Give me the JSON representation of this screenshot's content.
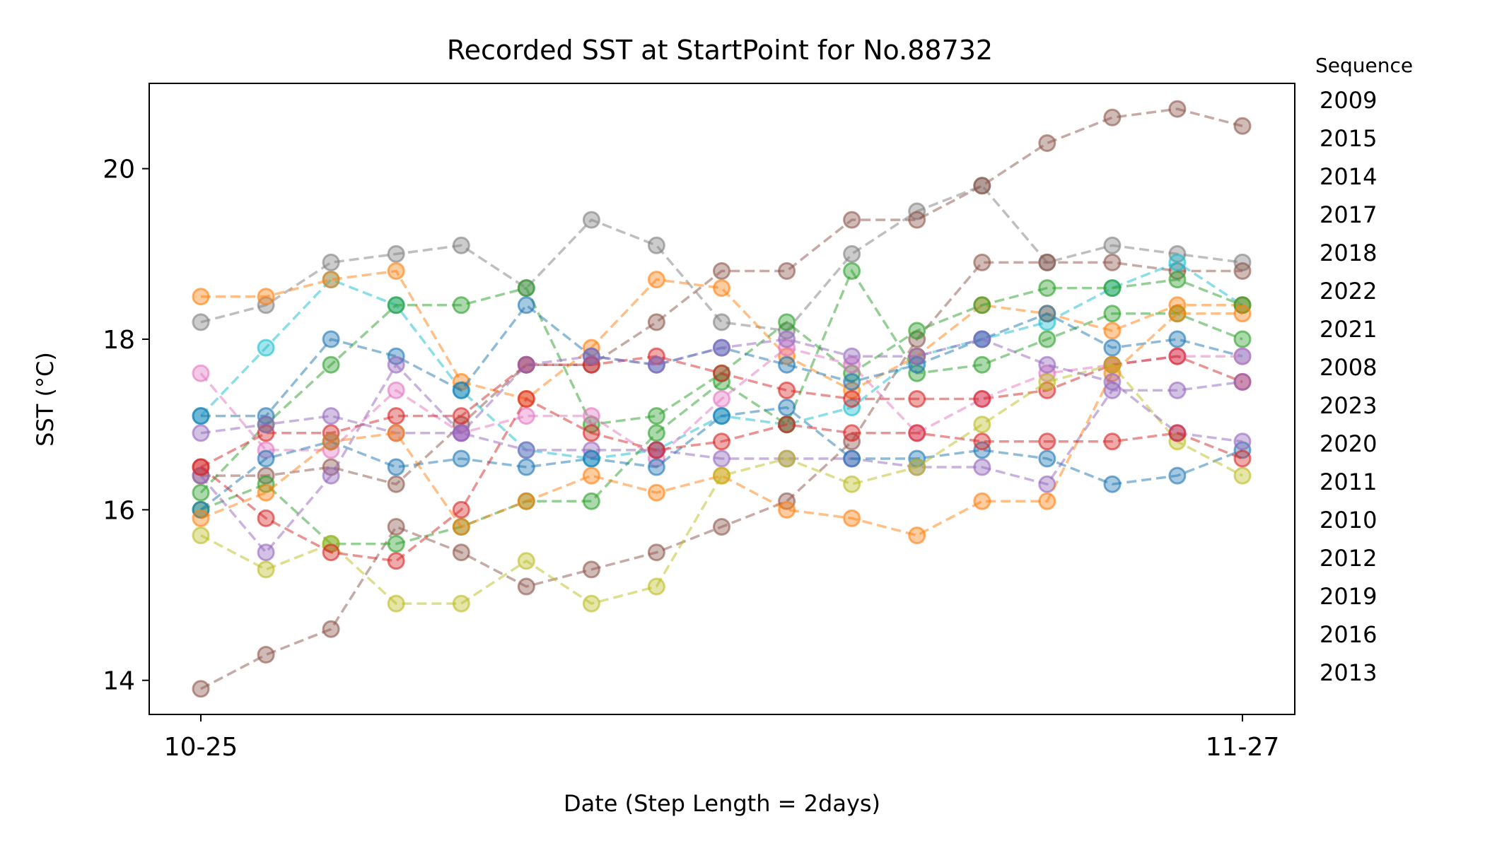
{
  "chart_data": {
    "type": "line",
    "title": "Recorded SST at StartPoint for No.88732",
    "xlabel": "Date (Step Length = 2days)",
    "ylabel": "SST (°C)",
    "x_tick_labels": [
      "10-25",
      "11-27"
    ],
    "y_ticks": [
      14,
      16,
      18,
      20
    ],
    "ylim": [
      13.6,
      21.0
    ],
    "x_steps": 17,
    "legend_title": "Sequence",
    "legend_placement": "right-outside",
    "grid": false,
    "line_style": "dashed",
    "marker": "circle",
    "series": [
      {
        "name": "2009",
        "color": "#7f7f7f",
        "values": [
          18.2,
          18.4,
          18.9,
          19.0,
          19.1,
          18.6,
          19.4,
          19.1,
          18.2,
          18.1,
          19.0,
          19.5,
          19.8,
          18.9,
          19.1,
          19.0,
          18.9
        ]
      },
      {
        "name": "2015",
        "color": "#8c564b",
        "values": [
          13.9,
          14.3,
          14.6,
          15.8,
          15.5,
          15.1,
          15.3,
          15.5,
          15.8,
          16.1,
          16.8,
          18.0,
          18.9,
          18.9,
          18.9,
          18.8,
          18.8
        ]
      },
      {
        "name": "2014",
        "color": "#8c564b",
        "values": [
          16.4,
          16.4,
          16.5,
          16.3,
          17.0,
          17.7,
          17.7,
          18.2,
          18.8,
          18.8,
          19.4,
          19.4,
          19.8,
          20.3,
          20.6,
          20.7,
          20.5
        ]
      },
      {
        "name": "2017",
        "color": "#17becf",
        "values": [
          17.1,
          17.9,
          18.7,
          18.4,
          17.4,
          16.7,
          16.6,
          16.7,
          17.1,
          17.0,
          17.2,
          17.8,
          18.0,
          18.2,
          18.6,
          18.9,
          18.4
        ]
      },
      {
        "name": "2018",
        "color": "#ff7f0e",
        "values": [
          18.5,
          18.5,
          18.7,
          18.8,
          17.5,
          17.3,
          17.9,
          18.7,
          18.6,
          17.8,
          17.4,
          17.8,
          18.4,
          18.3,
          18.1,
          18.4,
          18.4
        ]
      },
      {
        "name": "2022",
        "color": "#2ca02c",
        "values": [
          16.2,
          17.0,
          17.7,
          18.4,
          18.4,
          18.6,
          17.0,
          17.1,
          17.6,
          18.2,
          17.6,
          18.1,
          18.4,
          18.6,
          18.6,
          18.7,
          18.4
        ]
      },
      {
        "name": "2021",
        "color": "#2ca02c",
        "values": [
          16.0,
          16.3,
          15.6,
          15.6,
          15.8,
          16.1,
          16.1,
          16.9,
          17.5,
          17.0,
          18.8,
          17.6,
          17.7,
          18.0,
          18.3,
          18.3,
          18.0
        ]
      },
      {
        "name": "2008",
        "color": "#1f77b4",
        "values": [
          17.1,
          17.1,
          18.0,
          17.8,
          17.4,
          18.4,
          17.8,
          17.7,
          17.9,
          17.7,
          17.5,
          17.7,
          18.0,
          18.3,
          17.9,
          18.0,
          17.8
        ]
      },
      {
        "name": "2023",
        "color": "#e377c2",
        "values": [
          17.6,
          16.7,
          16.7,
          17.4,
          16.9,
          17.1,
          17.1,
          16.6,
          17.3,
          17.9,
          17.7,
          16.9,
          17.3,
          17.6,
          17.7,
          17.8,
          17.8
        ]
      },
      {
        "name": "2020",
        "color": "#d62728",
        "values": [
          16.5,
          16.9,
          16.9,
          17.1,
          17.1,
          17.7,
          17.7,
          17.8,
          17.6,
          17.4,
          17.3,
          17.3,
          17.3,
          17.4,
          17.7,
          17.8,
          17.5
        ]
      },
      {
        "name": "2011",
        "color": "#9467bd",
        "values": [
          16.9,
          17.0,
          17.1,
          16.9,
          16.9,
          16.7,
          16.7,
          16.7,
          16.6,
          16.6,
          16.6,
          16.5,
          16.5,
          16.3,
          17.4,
          17.4,
          17.5
        ]
      },
      {
        "name": "2010",
        "color": "#1f77b4",
        "values": [
          16.0,
          16.6,
          16.8,
          16.5,
          16.6,
          16.5,
          16.6,
          16.5,
          17.1,
          17.2,
          16.6,
          16.6,
          16.7,
          16.6,
          16.3,
          16.4,
          16.7
        ]
      },
      {
        "name": "2012",
        "color": "#ff7f0e",
        "values": [
          15.9,
          16.2,
          16.8,
          16.9,
          15.8,
          16.1,
          16.4,
          16.2,
          16.4,
          16.0,
          15.9,
          15.7,
          16.1,
          16.1,
          17.6,
          18.3,
          18.3
        ]
      },
      {
        "name": "2019",
        "color": "#bcbd22",
        "values": [
          15.7,
          15.3,
          15.6,
          14.9,
          14.9,
          15.4,
          14.9,
          15.1,
          16.4,
          16.6,
          16.3,
          16.5,
          17.0,
          17.5,
          17.7,
          16.8,
          16.4
        ]
      },
      {
        "name": "2016",
        "color": "#9467bd",
        "values": [
          16.4,
          15.5,
          16.4,
          17.7,
          16.9,
          17.7,
          17.8,
          17.7,
          17.9,
          18.0,
          17.8,
          17.8,
          18.0,
          17.7,
          17.5,
          16.9,
          16.8
        ]
      },
      {
        "name": "2013",
        "color": "#d62728",
        "values": [
          16.5,
          15.9,
          15.5,
          15.4,
          16.0,
          17.3,
          16.9,
          16.7,
          16.8,
          17.0,
          16.9,
          16.9,
          16.8,
          16.8,
          16.8,
          16.9,
          16.6
        ]
      }
    ]
  }
}
